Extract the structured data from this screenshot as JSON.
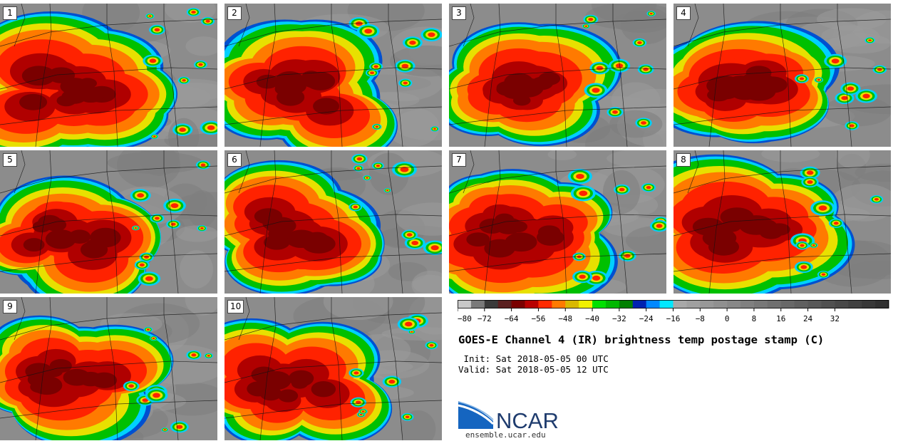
{
  "panels": [
    {
      "label": "1",
      "coverage": 0.62,
      "seed": 11
    },
    {
      "label": "2",
      "coverage": 0.58,
      "seed": 23
    },
    {
      "label": "3",
      "coverage": 0.6,
      "seed": 37
    },
    {
      "label": "4",
      "coverage": 0.66,
      "seed": 41
    },
    {
      "label": "5",
      "coverage": 0.57,
      "seed": 53
    },
    {
      "label": "6",
      "coverage": 0.63,
      "seed": 67
    },
    {
      "label": "7",
      "coverage": 0.61,
      "seed": 71
    },
    {
      "label": "8",
      "coverage": 0.64,
      "seed": 83
    },
    {
      "label": "9",
      "coverage": 0.59,
      "seed": 97
    },
    {
      "label": "10",
      "coverage": 0.56,
      "seed": 101
    }
  ],
  "colorbar": {
    "colors": [
      "#c8c8c8",
      "#7a7a7a",
      "#3a3a3a",
      "#5a1f1f",
      "#7a0000",
      "#b80000",
      "#ff2a00",
      "#ff7a00",
      "#d9b800",
      "#f0f000",
      "#00e000",
      "#00b800",
      "#008000",
      "#0022b0",
      "#0088ff",
      "#00e8ff",
      "#a8a8a8",
      "#a0a0a0",
      "#989898",
      "#909090",
      "#888888",
      "#808080",
      "#787878",
      "#707070",
      "#686868",
      "#606060",
      "#585858",
      "#505050",
      "#484848",
      "#404040",
      "#383838",
      "#303030"
    ],
    "tick_labels": [
      "−80",
      "−72",
      "−64",
      "−56",
      "−48",
      "−40",
      "−32",
      "−24",
      "−16",
      "−8",
      "0",
      "8",
      "16",
      "24",
      "32"
    ]
  },
  "title": "GOES-E Channel 4 (IR) brightness temp postage stamp (C)",
  "init": " Init: Sat 2018-05-05 00 UTC",
  "valid": "Valid: Sat 2018-05-05 12 UTC",
  "logo_text": "NCAR",
  "site": "ensemble.ucar.edu"
}
